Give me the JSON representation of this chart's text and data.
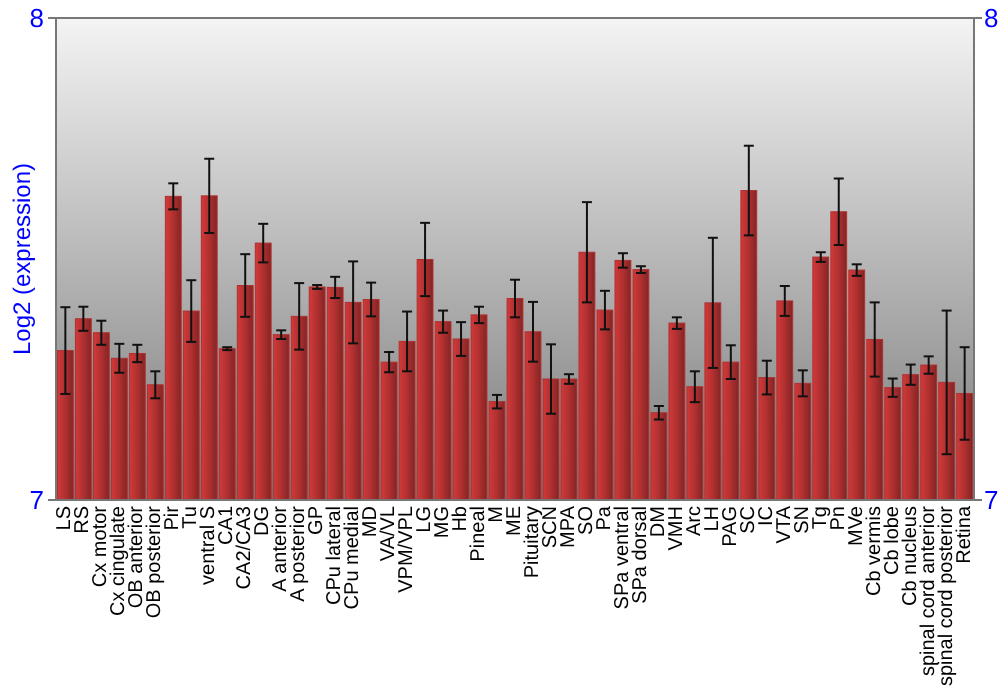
{
  "chart_data": {
    "type": "bar",
    "ylabel": "Log2 (expression)",
    "categories": [
      "LS",
      "RS",
      "Cx motor",
      "Cx cingulate",
      "OB anterior",
      "OB posterior",
      "Pir",
      "Tu",
      "ventral S",
      "CA1",
      "CA2/CA3",
      "DG",
      "A anterior",
      "A posterior",
      "GP",
      "CPu lateral",
      "CPu medial",
      "MD",
      "VA/VL",
      "VPM/VPL",
      "LG",
      "MG",
      "Hb",
      "Pineal",
      "M",
      "ME",
      "Pituitary",
      "SCN",
      "MPA",
      "SO",
      "Pa",
      "SPa ventral",
      "SPa dorsal",
      "DM",
      "VMH",
      "Arc",
      "LH",
      "PAG",
      "SC",
      "IC",
      "VTA",
      "SN",
      "Tg",
      "Pn",
      "MVe",
      "Cb vermis",
      "Cb lobe",
      "Cb nucleus",
      "spinal cord anterior",
      "spinal cord posterior",
      "Retina"
    ],
    "values": [
      7.31,
      7.376,
      7.347,
      7.294,
      7.304,
      7.239,
      7.63,
      7.392,
      7.631,
      7.314,
      7.445,
      7.533,
      7.343,
      7.381,
      7.442,
      7.441,
      7.41,
      7.416,
      7.286,
      7.329,
      7.499,
      7.37,
      7.334,
      7.384,
      7.204,
      7.418,
      7.349,
      7.251,
      7.251,
      7.514,
      7.394,
      7.497,
      7.478,
      7.181,
      7.367,
      7.235,
      7.409,
      7.286,
      7.642,
      7.254,
      7.413,
      7.242,
      7.504,
      7.598,
      7.477,
      7.333,
      7.233,
      7.26,
      7.28,
      7.244,
      7.221
    ],
    "errors": [
      0.09,
      0.025,
      0.025,
      0.03,
      0.018,
      0.028,
      0.027,
      0.064,
      0.077,
      0.003,
      0.065,
      0.04,
      0.009,
      0.069,
      0.004,
      0.022,
      0.085,
      0.035,
      0.021,
      0.062,
      0.076,
      0.023,
      0.035,
      0.017,
      0.014,
      0.039,
      0.062,
      0.072,
      0.01,
      0.104,
      0.04,
      0.015,
      0.007,
      0.014,
      0.012,
      0.032,
      0.135,
      0.035,
      0.093,
      0.035,
      0.031,
      0.027,
      0.01,
      0.069,
      0.012,
      0.077,
      0.019,
      0.021,
      0.018,
      0.149,
      0.096
    ],
    "color": "#b03030",
    "ylim": [
      7,
      8
    ],
    "yticks": [
      7,
      8
    ],
    "y2lim": [
      7,
      8
    ],
    "y2ticks": [
      7,
      8
    ]
  }
}
